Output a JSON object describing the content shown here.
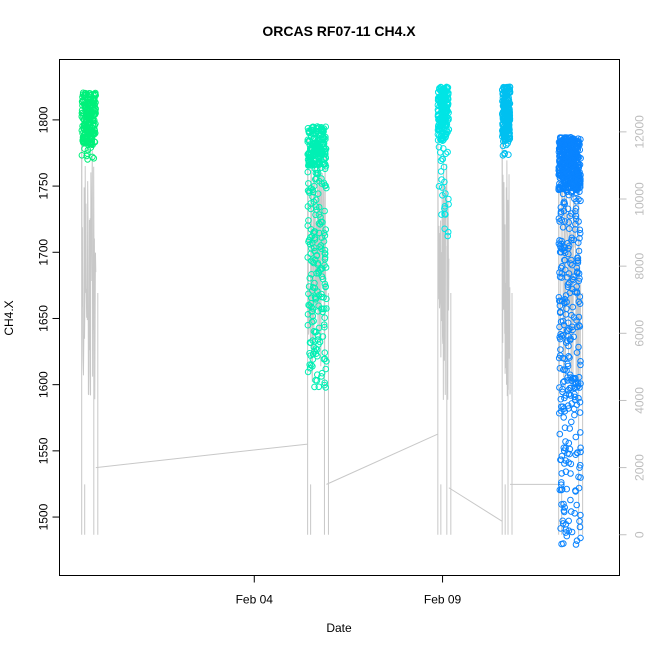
{
  "chart_data": {
    "type": "scatter",
    "title": "ORCAS RF07-11 CH4.X",
    "xlabel": "Date",
    "ylabel": "CH4.X",
    "x_ticks": [
      "Feb 04",
      "Feb 09"
    ],
    "xlim": [
      "2016-01-30T00:00",
      "2016-02-13T12:00"
    ],
    "ylim": [
      1477,
      1829
    ],
    "y_ticks": [
      1500,
      1550,
      1600,
      1650,
      1700,
      1750,
      1800
    ],
    "y2lim": [
      -380,
      13500
    ],
    "y2_ticks": [
      0,
      2000,
      4000,
      6000,
      8000,
      10000,
      12000
    ],
    "y2_tick_color": "#c0c0c0",
    "grid": false,
    "line_color": "#c8c8c8",
    "series": [
      {
        "color": "#00f07a",
        "x_range": [
          "2016-01-30T10:00",
          "2016-01-30T19:00"
        ],
        "y_range": [
          1770,
          1821
        ]
      },
      {
        "color": "#00f0b4",
        "x_range": [
          "2016-02-05T10:00",
          "2016-02-05T22:00"
        ],
        "y_range": [
          1597,
          1795
        ]
      },
      {
        "color": "#00e5e5",
        "x_range": [
          "2016-02-08T21:00",
          "2016-02-09T04:00"
        ],
        "y_range": [
          1712,
          1825
        ]
      },
      {
        "color": "#00c0f0",
        "x_range": [
          "2016-02-10T14:00",
          "2016-02-10T19:00"
        ],
        "y_range": [
          1770,
          1825
        ]
      },
      {
        "color": "#0a84ff",
        "x_range": [
          "2016-02-12T02:00",
          "2016-02-12T16:00"
        ],
        "y_range": [
          1478,
          1787
        ]
      }
    ]
  }
}
